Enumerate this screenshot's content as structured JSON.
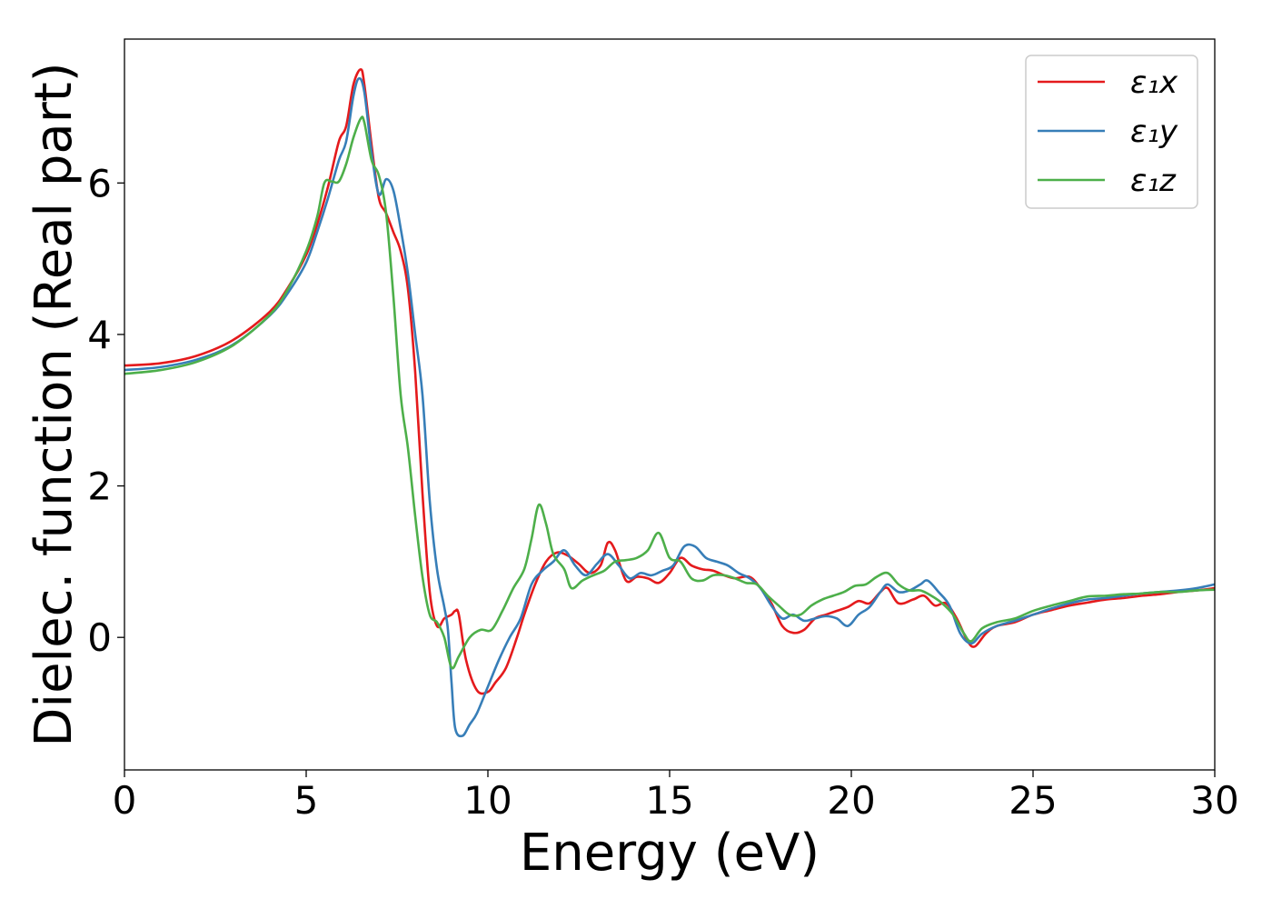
{
  "chart_data": {
    "type": "line",
    "title": "",
    "xlabel": "Energy (eV)",
    "ylabel": "Dielec. function (Real part)",
    "xlim": [
      0,
      30
    ],
    "ylim": [
      -1.75,
      7.9
    ],
    "xticks": [
      0,
      5,
      10,
      15,
      20,
      25,
      30
    ],
    "yticks": [
      0,
      2,
      4,
      6
    ],
    "grid": false,
    "legend": "top-right",
    "series": [
      {
        "name": "ε₁x",
        "color": "#e41a1c",
        "points": [
          [
            0,
            3.59
          ],
          [
            1,
            3.62
          ],
          [
            2,
            3.72
          ],
          [
            3,
            3.93
          ],
          [
            4,
            4.3
          ],
          [
            4.5,
            4.62
          ],
          [
            5,
            5.05
          ],
          [
            5.3,
            5.45
          ],
          [
            5.6,
            5.95
          ],
          [
            5.9,
            6.55
          ],
          [
            6.1,
            6.75
          ],
          [
            6.3,
            7.3
          ],
          [
            6.5,
            7.5
          ],
          [
            6.6,
            7.3
          ],
          [
            6.8,
            6.5
          ],
          [
            7.0,
            5.8
          ],
          [
            7.2,
            5.6
          ],
          [
            7.4,
            5.35
          ],
          [
            7.6,
            5.1
          ],
          [
            7.8,
            4.6
          ],
          [
            8.0,
            3.5
          ],
          [
            8.2,
            1.9
          ],
          [
            8.4,
            0.6
          ],
          [
            8.6,
            0.15
          ],
          [
            8.8,
            0.25
          ],
          [
            9.0,
            0.3
          ],
          [
            9.1,
            0.35
          ],
          [
            9.2,
            0.3
          ],
          [
            9.4,
            -0.3
          ],
          [
            9.7,
            -0.7
          ],
          [
            10.0,
            -0.72
          ],
          [
            10.2,
            -0.6
          ],
          [
            10.5,
            -0.4
          ],
          [
            10.8,
            0.0
          ],
          [
            11.0,
            0.3
          ],
          [
            11.3,
            0.7
          ],
          [
            11.6,
            1.0
          ],
          [
            11.9,
            1.12
          ],
          [
            12.2,
            1.08
          ],
          [
            12.5,
            0.97
          ],
          [
            12.8,
            0.85
          ],
          [
            13.1,
            0.95
          ],
          [
            13.3,
            1.25
          ],
          [
            13.5,
            1.15
          ],
          [
            13.8,
            0.75
          ],
          [
            14.1,
            0.8
          ],
          [
            14.4,
            0.78
          ],
          [
            14.7,
            0.72
          ],
          [
            15.0,
            0.85
          ],
          [
            15.3,
            1.05
          ],
          [
            15.6,
            0.95
          ],
          [
            15.9,
            0.9
          ],
          [
            16.2,
            0.88
          ],
          [
            16.5,
            0.82
          ],
          [
            16.8,
            0.78
          ],
          [
            17.2,
            0.8
          ],
          [
            17.5,
            0.65
          ],
          [
            17.8,
            0.45
          ],
          [
            18.1,
            0.15
          ],
          [
            18.4,
            0.06
          ],
          [
            18.7,
            0.1
          ],
          [
            19.0,
            0.25
          ],
          [
            19.3,
            0.3
          ],
          [
            19.6,
            0.35
          ],
          [
            19.9,
            0.4
          ],
          [
            20.2,
            0.48
          ],
          [
            20.5,
            0.45
          ],
          [
            20.8,
            0.6
          ],
          [
            21.0,
            0.65
          ],
          [
            21.3,
            0.45
          ],
          [
            21.7,
            0.5
          ],
          [
            22.0,
            0.55
          ],
          [
            22.3,
            0.42
          ],
          [
            22.6,
            0.45
          ],
          [
            22.9,
            0.25
          ],
          [
            23.2,
            -0.05
          ],
          [
            23.4,
            -0.12
          ],
          [
            23.7,
            0.05
          ],
          [
            24.0,
            0.15
          ],
          [
            24.5,
            0.2
          ],
          [
            25.0,
            0.3
          ],
          [
            25.5,
            0.36
          ],
          [
            26.0,
            0.42
          ],
          [
            26.5,
            0.46
          ],
          [
            27.0,
            0.5
          ],
          [
            27.5,
            0.52
          ],
          [
            28.0,
            0.55
          ],
          [
            28.5,
            0.57
          ],
          [
            29.0,
            0.6
          ],
          [
            29.5,
            0.62
          ],
          [
            30.0,
            0.65
          ]
        ]
      },
      {
        "name": "ε₁y",
        "color": "#377eb8",
        "points": [
          [
            0,
            3.53
          ],
          [
            1,
            3.57
          ],
          [
            2,
            3.67
          ],
          [
            3,
            3.87
          ],
          [
            4,
            4.25
          ],
          [
            4.5,
            4.55
          ],
          [
            5,
            4.95
          ],
          [
            5.3,
            5.35
          ],
          [
            5.6,
            5.8
          ],
          [
            5.9,
            6.3
          ],
          [
            6.1,
            6.55
          ],
          [
            6.3,
            7.15
          ],
          [
            6.45,
            7.38
          ],
          [
            6.6,
            7.2
          ],
          [
            6.8,
            6.4
          ],
          [
            7.0,
            5.85
          ],
          [
            7.2,
            6.05
          ],
          [
            7.4,
            5.9
          ],
          [
            7.6,
            5.4
          ],
          [
            7.8,
            4.8
          ],
          [
            8.0,
            4.0
          ],
          [
            8.2,
            3.2
          ],
          [
            8.4,
            1.8
          ],
          [
            8.6,
            0.9
          ],
          [
            8.8,
            0.4
          ],
          [
            8.9,
            0.1
          ],
          [
            9.0,
            -0.6
          ],
          [
            9.1,
            -1.2
          ],
          [
            9.3,
            -1.3
          ],
          [
            9.5,
            -1.15
          ],
          [
            9.7,
            -1.0
          ],
          [
            10.0,
            -0.65
          ],
          [
            10.3,
            -0.3
          ],
          [
            10.6,
            0.0
          ],
          [
            10.9,
            0.25
          ],
          [
            11.2,
            0.7
          ],
          [
            11.5,
            0.88
          ],
          [
            11.8,
            1.0
          ],
          [
            12.1,
            1.15
          ],
          [
            12.4,
            0.95
          ],
          [
            12.7,
            0.82
          ],
          [
            13.0,
            0.97
          ],
          [
            13.3,
            1.1
          ],
          [
            13.6,
            0.95
          ],
          [
            13.9,
            0.78
          ],
          [
            14.2,
            0.85
          ],
          [
            14.5,
            0.82
          ],
          [
            14.8,
            0.88
          ],
          [
            15.1,
            0.95
          ],
          [
            15.4,
            1.2
          ],
          [
            15.7,
            1.2
          ],
          [
            16.0,
            1.05
          ],
          [
            16.3,
            1.0
          ],
          [
            16.6,
            0.95
          ],
          [
            16.9,
            0.85
          ],
          [
            17.2,
            0.78
          ],
          [
            17.5,
            0.65
          ],
          [
            17.8,
            0.42
          ],
          [
            18.1,
            0.25
          ],
          [
            18.4,
            0.3
          ],
          [
            18.7,
            0.22
          ],
          [
            19.0,
            0.25
          ],
          [
            19.3,
            0.28
          ],
          [
            19.6,
            0.25
          ],
          [
            19.9,
            0.15
          ],
          [
            20.2,
            0.3
          ],
          [
            20.5,
            0.4
          ],
          [
            20.8,
            0.6
          ],
          [
            21.0,
            0.7
          ],
          [
            21.3,
            0.6
          ],
          [
            21.6,
            0.62
          ],
          [
            21.9,
            0.7
          ],
          [
            22.1,
            0.75
          ],
          [
            22.4,
            0.6
          ],
          [
            22.7,
            0.42
          ],
          [
            23.0,
            0.05
          ],
          [
            23.3,
            -0.08
          ],
          [
            23.6,
            0.05
          ],
          [
            24.0,
            0.15
          ],
          [
            24.5,
            0.22
          ],
          [
            25.0,
            0.3
          ],
          [
            25.5,
            0.38
          ],
          [
            26.0,
            0.45
          ],
          [
            26.5,
            0.5
          ],
          [
            27.0,
            0.52
          ],
          [
            27.5,
            0.55
          ],
          [
            28.0,
            0.58
          ],
          [
            28.5,
            0.6
          ],
          [
            29.0,
            0.62
          ],
          [
            29.5,
            0.65
          ],
          [
            30.0,
            0.7
          ]
        ]
      },
      {
        "name": "ε₁z",
        "color": "#4daf4a",
        "points": [
          [
            0,
            3.48
          ],
          [
            1,
            3.53
          ],
          [
            2,
            3.64
          ],
          [
            3,
            3.86
          ],
          [
            4,
            4.26
          ],
          [
            4.5,
            4.6
          ],
          [
            5,
            5.1
          ],
          [
            5.3,
            5.55
          ],
          [
            5.5,
            6.0
          ],
          [
            5.7,
            6.02
          ],
          [
            5.9,
            6.02
          ],
          [
            6.1,
            6.25
          ],
          [
            6.3,
            6.6
          ],
          [
            6.5,
            6.85
          ],
          [
            6.6,
            6.8
          ],
          [
            6.8,
            6.3
          ],
          [
            7.0,
            6.1
          ],
          [
            7.2,
            5.6
          ],
          [
            7.4,
            4.5
          ],
          [
            7.6,
            3.2
          ],
          [
            7.8,
            2.5
          ],
          [
            8.0,
            1.6
          ],
          [
            8.2,
            0.8
          ],
          [
            8.4,
            0.3
          ],
          [
            8.6,
            0.2
          ],
          [
            8.8,
            0.0
          ],
          [
            9.0,
            -0.4
          ],
          [
            9.2,
            -0.25
          ],
          [
            9.5,
            0.0
          ],
          [
            9.8,
            0.1
          ],
          [
            10.1,
            0.1
          ],
          [
            10.4,
            0.35
          ],
          [
            10.7,
            0.65
          ],
          [
            11.0,
            0.9
          ],
          [
            11.2,
            1.3
          ],
          [
            11.4,
            1.75
          ],
          [
            11.6,
            1.5
          ],
          [
            11.8,
            1.1
          ],
          [
            12.1,
            0.9
          ],
          [
            12.3,
            0.65
          ],
          [
            12.6,
            0.75
          ],
          [
            12.9,
            0.82
          ],
          [
            13.2,
            0.88
          ],
          [
            13.5,
            1.0
          ],
          [
            13.8,
            1.02
          ],
          [
            14.1,
            1.05
          ],
          [
            14.4,
            1.15
          ],
          [
            14.7,
            1.38
          ],
          [
            15.0,
            1.05
          ],
          [
            15.3,
            1.0
          ],
          [
            15.6,
            0.78
          ],
          [
            15.9,
            0.75
          ],
          [
            16.2,
            0.82
          ],
          [
            16.5,
            0.82
          ],
          [
            16.8,
            0.78
          ],
          [
            17.1,
            0.72
          ],
          [
            17.4,
            0.7
          ],
          [
            17.7,
            0.55
          ],
          [
            18.0,
            0.42
          ],
          [
            18.3,
            0.3
          ],
          [
            18.6,
            0.3
          ],
          [
            18.9,
            0.42
          ],
          [
            19.2,
            0.5
          ],
          [
            19.5,
            0.55
          ],
          [
            19.8,
            0.6
          ],
          [
            20.1,
            0.68
          ],
          [
            20.4,
            0.7
          ],
          [
            20.7,
            0.8
          ],
          [
            21.0,
            0.85
          ],
          [
            21.3,
            0.7
          ],
          [
            21.6,
            0.62
          ],
          [
            21.9,
            0.62
          ],
          [
            22.2,
            0.55
          ],
          [
            22.5,
            0.45
          ],
          [
            22.8,
            0.3
          ],
          [
            23.1,
            0.05
          ],
          [
            23.3,
            -0.05
          ],
          [
            23.6,
            0.12
          ],
          [
            24.0,
            0.2
          ],
          [
            24.5,
            0.25
          ],
          [
            25.0,
            0.35
          ],
          [
            25.5,
            0.42
          ],
          [
            26.0,
            0.48
          ],
          [
            26.5,
            0.54
          ],
          [
            27.0,
            0.55
          ],
          [
            27.5,
            0.57
          ],
          [
            28.0,
            0.58
          ],
          [
            28.5,
            0.6
          ],
          [
            29.0,
            0.6
          ],
          [
            29.5,
            0.62
          ],
          [
            30.0,
            0.63
          ]
        ]
      }
    ]
  }
}
